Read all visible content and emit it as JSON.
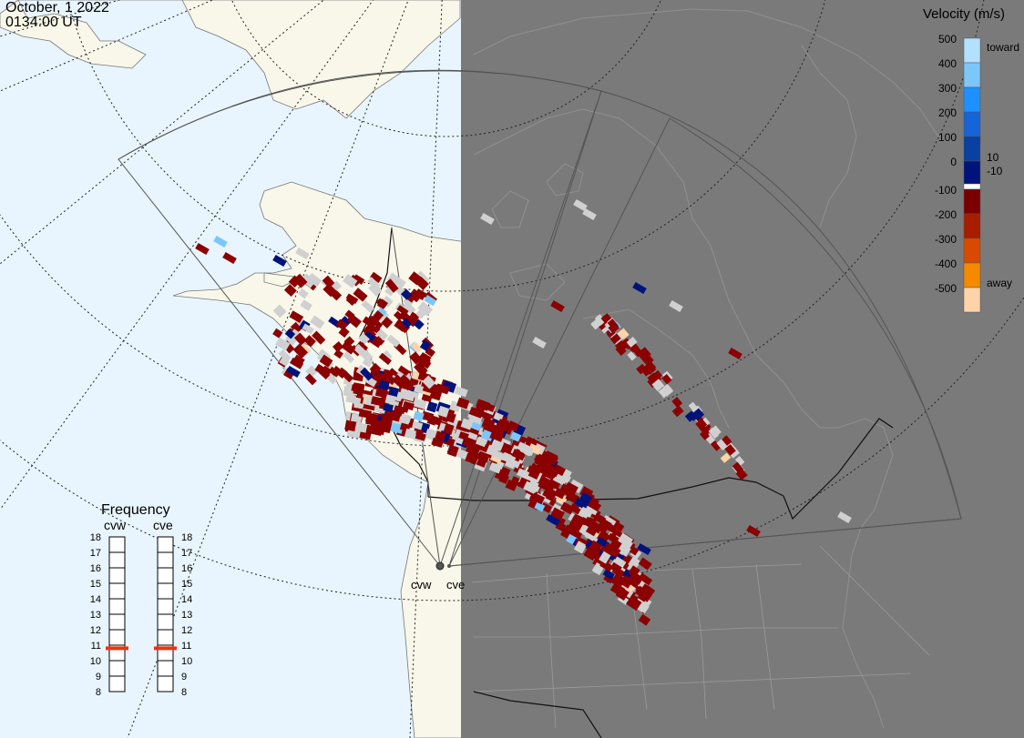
{
  "header": {
    "date": "October, 1 2022",
    "time": "0134:00 UT"
  },
  "colors": {
    "ocean": "#e8f5fe",
    "land_day": "#f8f7e9",
    "night_side": "#7a7a7a",
    "ground_scatter": "#d0d0d0",
    "fov_outline": "#555555"
  },
  "colorbar": {
    "title": "Velocity (m/s)",
    "toward_label": "toward",
    "away_label": "away",
    "ticks": [
      "500",
      "400",
      "300",
      "200",
      "100",
      "0",
      "-100",
      "-200",
      "-300",
      "-400",
      "-500"
    ],
    "inner_labels": [
      "10",
      "-10"
    ],
    "colors": [
      "#b3e0ff",
      "#7cc6fa",
      "#1e90ff",
      "#1565d8",
      "#0a3fa3",
      "#00137a",
      "#7a0000",
      "#a81d00",
      "#d84a00",
      "#f58a00",
      "#ffd3a8"
    ]
  },
  "frequency": {
    "title": "Frequency",
    "stations": [
      {
        "name": "cvw",
        "value_mhz": 10.8
      },
      {
        "name": "cve",
        "value_mhz": 10.8
      }
    ],
    "ticks": [
      "18",
      "17",
      "16",
      "15",
      "14",
      "13",
      "12",
      "11",
      "10",
      "9",
      "8"
    ],
    "marker_color": "#ee3311"
  },
  "radar_sites": [
    {
      "name": "cvw"
    },
    {
      "name": "cve"
    }
  ]
}
